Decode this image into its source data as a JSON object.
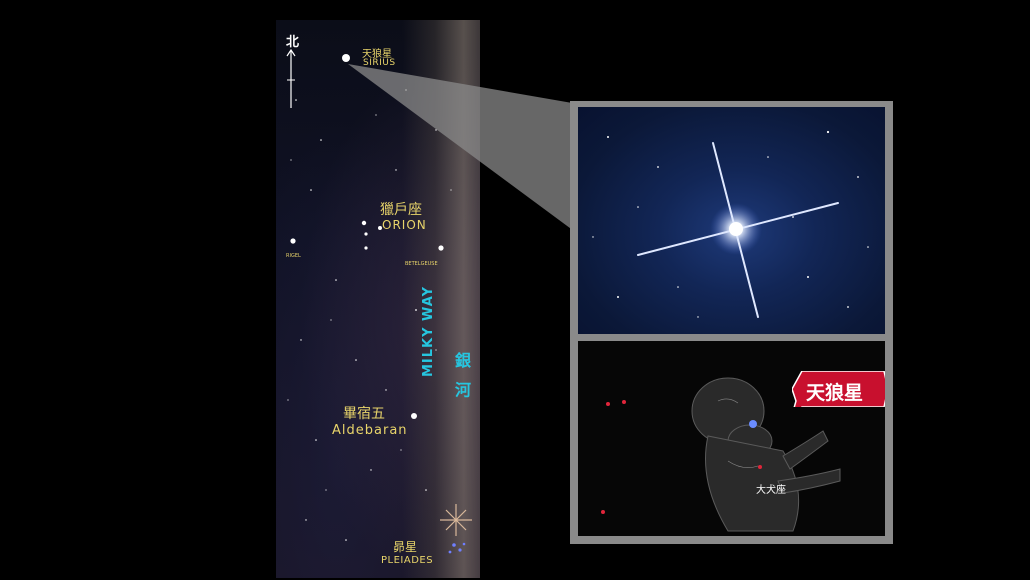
{
  "compass": {
    "label": "北"
  },
  "strip": {
    "sirius_cn": "天狼星",
    "sirius_en": "SIRIUS",
    "orion_cn": "獵戶座",
    "orion_en": "ORION",
    "rigel": "RIGEL",
    "betelgeuse": "BETELGEUSE",
    "milky_cn": "銀 河",
    "milky_en": "MILKY WAY",
    "aldebaran_cn": "畢宿五",
    "aldebaran_en": "Aldebaran",
    "pleiades_cn": "昴星",
    "pleiades_en": "PLEIADES"
  },
  "panel": {
    "tag_label": "天狼星",
    "constellation_label": "大犬座"
  },
  "colors": {
    "label_yellow": "#e8d46a",
    "milky_cyan": "#26c6e0",
    "tag_red": "#c8102e",
    "panel_border": "#8a8a8a"
  }
}
